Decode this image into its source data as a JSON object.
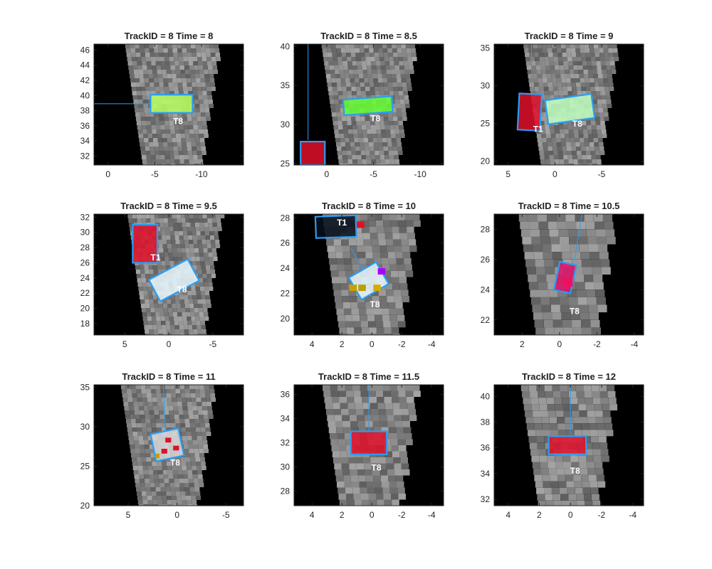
{
  "chart_data": [
    {
      "type": "heatmap",
      "title": "TrackID = 8 Time = 8",
      "xlim": [
        1.5,
        -14.5
      ],
      "ylim": [
        30.8,
        46.8
      ],
      "x_ticks": [
        "0",
        "-5",
        "-10"
      ],
      "x_tick_values": [
        0,
        -5,
        -10
      ],
      "y_ticks": [
        "32",
        "34",
        "36",
        "38",
        "40",
        "42",
        "44",
        "46"
      ],
      "y_tick_values": [
        32,
        34,
        36,
        38,
        40,
        42,
        44,
        46
      ],
      "tracks": [
        {
          "label": "T8",
          "center": [
            -6.8,
            38.9
          ],
          "width": 4.5,
          "height": 2.4,
          "angle": 0,
          "label_pos": [
            -7.5,
            36.2
          ],
          "color": "#2a9df4",
          "fill": "#b9ff60"
        }
      ],
      "patches": [],
      "trail": [
        [
          1.5,
          38.9
        ],
        [
          -5,
          38.9
        ]
      ]
    },
    {
      "type": "heatmap",
      "title": "TrackID = 8 Time = 8.5",
      "xlim": [
        3.5,
        -12.5
      ],
      "ylim": [
        24.8,
        40.3
      ],
      "x_ticks": [
        "0",
        "-5",
        "-10"
      ],
      "x_tick_values": [
        0,
        -5,
        -10
      ],
      "y_ticks": [
        "25",
        "30",
        "35",
        "40"
      ],
      "y_tick_values": [
        25,
        30,
        35,
        40
      ],
      "tracks": [
        {
          "label": "T8",
          "center": [
            -4.4,
            32.4
          ],
          "width": 5.2,
          "height": 2.0,
          "angle": -4,
          "label_pos": [
            -5.2,
            30.4
          ],
          "color": "#2a9df4",
          "fill": "#66ff33"
        },
        {
          "label": "",
          "center": [
            1.5,
            26.3
          ],
          "width": 2.6,
          "height": 3.0,
          "angle": 0,
          "label_pos": null,
          "color": "#2a9df4",
          "fill": "#e0102a"
        }
      ],
      "patches": [],
      "trail": [
        [
          2.0,
          40.3
        ],
        [
          2.0,
          28.0
        ]
      ]
    },
    {
      "type": "heatmap",
      "title": "TrackID = 8 Time = 9",
      "xlim": [
        6.5,
        -9.5
      ],
      "ylim": [
        19.5,
        35.5
      ],
      "x_ticks": [
        "5",
        "0",
        "-5"
      ],
      "x_tick_values": [
        5,
        0,
        -5
      ],
      "y_ticks": [
        "20",
        "25",
        "30",
        "35"
      ],
      "y_tick_values": [
        20,
        25,
        30,
        35
      ],
      "tracks": [
        {
          "label": "T8",
          "center": [
            -1.6,
            26.9
          ],
          "width": 5.0,
          "height": 3.2,
          "angle": -8,
          "label_pos": [
            -2.4,
            24.6
          ],
          "color": "#2a9df4",
          "fill": "#c0ffc0"
        },
        {
          "label": "T1",
          "center": [
            2.7,
            26.5
          ],
          "width": 2.4,
          "height": 4.8,
          "angle": 3,
          "label_pos": [
            1.8,
            23.9
          ],
          "color": "#2a9df4",
          "fill": "#e0102a"
        }
      ],
      "patches": [],
      "trail": [
        [
          2.5,
          35.5
        ],
        [
          2.5,
          29.0
        ]
      ]
    },
    {
      "type": "heatmap",
      "title": "TrackID = 8 Time = 9.5",
      "xlim": [
        8.5,
        -8.5
      ],
      "ylim": [
        16.5,
        32.4
      ],
      "x_ticks": [
        "5",
        "0",
        "-5"
      ],
      "x_tick_values": [
        5,
        0,
        -5
      ],
      "y_ticks": [
        "18",
        "20",
        "22",
        "24",
        "26",
        "28",
        "30",
        "32"
      ],
      "y_tick_values": [
        18,
        20,
        22,
        24,
        26,
        28,
        30,
        32
      ],
      "tracks": [
        {
          "label": "T8",
          "center": [
            -0.6,
            23.7
          ],
          "width": 5.0,
          "height": 3.2,
          "angle": -28,
          "label_pos": [
            -1.5,
            22.1
          ],
          "color": "#2a9df4",
          "fill": "#e8f8ff"
        },
        {
          "label": "T1",
          "center": [
            2.7,
            28.5
          ],
          "width": 2.8,
          "height": 5.0,
          "angle": 0,
          "label_pos": [
            1.5,
            26.3
          ],
          "color": "#2a9df4",
          "fill": "#e0102a"
        }
      ],
      "patches": [],
      "trail": []
    },
    {
      "type": "heatmap",
      "title": "TrackID = 8 Time = 10",
      "xlim": [
        5.2,
        -4.8
      ],
      "ylim": [
        18.7,
        28.3
      ],
      "x_ticks": [
        "4",
        "2",
        "0",
        "-2",
        "-4"
      ],
      "x_tick_values": [
        4,
        2,
        0,
        -2,
        -4
      ],
      "y_ticks": [
        "20",
        "22",
        "24",
        "26",
        "28"
      ],
      "y_tick_values": [
        20,
        22,
        24,
        26,
        28
      ],
      "tracks": [
        {
          "label": "T8",
          "center": [
            0.2,
            23.0
          ],
          "width": 2.1,
          "height": 2.0,
          "angle": -30,
          "label_pos": [
            -0.2,
            20.9
          ],
          "color": "#2a9df4",
          "fill": "#e8f8ff"
        },
        {
          "label": "T1",
          "center": [
            2.4,
            27.3
          ],
          "width": 2.7,
          "height": 1.7,
          "angle": -2,
          "label_pos": [
            2.0,
            27.4
          ],
          "color": "#2a9df4",
          "fill": "#06101c"
        }
      ],
      "patches": [
        {
          "x": 1.0,
          "y": 27.2,
          "w": 0.5,
          "h": 0.5,
          "color": "#e0102a"
        },
        {
          "x": 1.5,
          "y": 22.2,
          "w": 0.5,
          "h": 0.5,
          "color": "#c8a000"
        },
        {
          "x": 0.9,
          "y": 22.2,
          "w": 0.5,
          "h": 0.5,
          "color": "#b8a000"
        },
        {
          "x": -0.1,
          "y": 22.2,
          "w": 0.5,
          "h": 0.5,
          "color": "#d4ab00"
        },
        {
          "x": -0.4,
          "y": 23.5,
          "w": 0.5,
          "h": 0.5,
          "color": "#aa00ff"
        }
      ],
      "trail": [
        [
          1.4,
          25.6
        ],
        [
          0.2,
          23.0
        ]
      ]
    },
    {
      "type": "heatmap",
      "title": "TrackID = 8 Time = 10.5",
      "xlim": [
        3.5,
        -4.5
      ],
      "ylim": [
        21.0,
        29.0
      ],
      "x_ticks": [
        "2",
        "0",
        "-2",
        "-4"
      ],
      "x_tick_values": [
        2,
        0,
        -2,
        -4
      ],
      "y_ticks": [
        "22",
        "24",
        "26",
        "28"
      ],
      "y_tick_values": [
        22,
        24,
        26,
        28
      ],
      "tracks": [
        {
          "label": "T8",
          "center": [
            -0.3,
            24.8
          ],
          "width": 0.9,
          "height": 1.9,
          "angle": 12,
          "label_pos": [
            -0.8,
            22.4
          ],
          "color": "#2a9df4",
          "fill": "#e0106a"
        }
      ],
      "patches": [
        {
          "x": -0.2,
          "y": 24.2,
          "w": 0.5,
          "h": 0.6,
          "color": "#f01060"
        }
      ],
      "trail": [
        [
          -1.2,
          29.0
        ],
        [
          -0.8,
          26.0
        ]
      ]
    },
    {
      "type": "heatmap",
      "title": "TrackID = 8 Time = 11",
      "xlim": [
        8.5,
        -6.8
      ],
      "ylim": [
        20.0,
        35.3
      ],
      "x_ticks": [
        "5",
        "0",
        "-5"
      ],
      "x_tick_values": [
        5,
        0,
        -5
      ],
      "y_ticks": [
        "20",
        "25",
        "30",
        "35"
      ],
      "y_tick_values": [
        20,
        25,
        30,
        35
      ],
      "tracks": [
        {
          "label": "T8",
          "center": [
            1.0,
            27.7
          ],
          "width": 2.9,
          "height": 3.5,
          "angle": -12,
          "label_pos": [
            0.2,
            25.1
          ],
          "color": "#2a9df4",
          "fill": "#d8d8d8"
        }
      ],
      "patches": [
        {
          "x": 1.2,
          "y": 28.0,
          "w": 0.6,
          "h": 0.6,
          "color": "#e0102a"
        },
        {
          "x": 0.4,
          "y": 27.0,
          "w": 0.6,
          "h": 0.6,
          "color": "#e0102a"
        },
        {
          "x": 1.6,
          "y": 26.6,
          "w": 0.6,
          "h": 0.6,
          "color": "#e0102a"
        },
        {
          "x": 2.2,
          "y": 26.0,
          "w": 0.4,
          "h": 0.6,
          "color": "#c8a000"
        }
      ],
      "trail": [
        [
          1.4,
          35.3
        ],
        [
          1.2,
          29.4
        ]
      ]
    },
    {
      "type": "heatmap",
      "title": "TrackID = 8 Time = 11.5",
      "xlim": [
        5.2,
        -4.8
      ],
      "ylim": [
        26.8,
        36.8
      ],
      "x_ticks": [
        "4",
        "2",
        "0",
        "-2",
        "-4"
      ],
      "x_tick_values": [
        4,
        2,
        0,
        -2,
        -4
      ],
      "y_ticks": [
        "28",
        "30",
        "32",
        "34",
        "36"
      ],
      "y_tick_values": [
        28,
        30,
        32,
        34,
        36
      ],
      "tracks": [
        {
          "label": "T8",
          "center": [
            0.2,
            32.0
          ],
          "width": 2.4,
          "height": 1.9,
          "angle": 0,
          "label_pos": [
            -0.3,
            29.7
          ],
          "color": "#2a9df4",
          "fill": "#e0102a"
        }
      ],
      "patches": [],
      "trail": [
        [
          0.2,
          36.8
        ],
        [
          0.2,
          33.0
        ]
      ]
    },
    {
      "type": "heatmap",
      "title": "TrackID = 8 Time = 12",
      "xlim": [
        4.9,
        -4.7
      ],
      "ylim": [
        31.5,
        40.9
      ],
      "x_ticks": [
        "4",
        "2",
        "0",
        "-2",
        "-4"
      ],
      "x_tick_values": [
        4,
        2,
        0,
        -2,
        -4
      ],
      "y_ticks": [
        "32",
        "34",
        "36",
        "38",
        "40"
      ],
      "y_tick_values": [
        32,
        34,
        36,
        38,
        40
      ],
      "tracks": [
        {
          "label": "T8",
          "center": [
            0.2,
            36.2
          ],
          "width": 2.4,
          "height": 1.4,
          "angle": 0,
          "label_pos": [
            -0.3,
            34.0
          ],
          "color": "#2a9df4",
          "fill": "#e0102a"
        }
      ],
      "patches": [],
      "trail": [
        [
          0.0,
          40.9
        ],
        [
          0.0,
          37.0
        ]
      ]
    }
  ]
}
